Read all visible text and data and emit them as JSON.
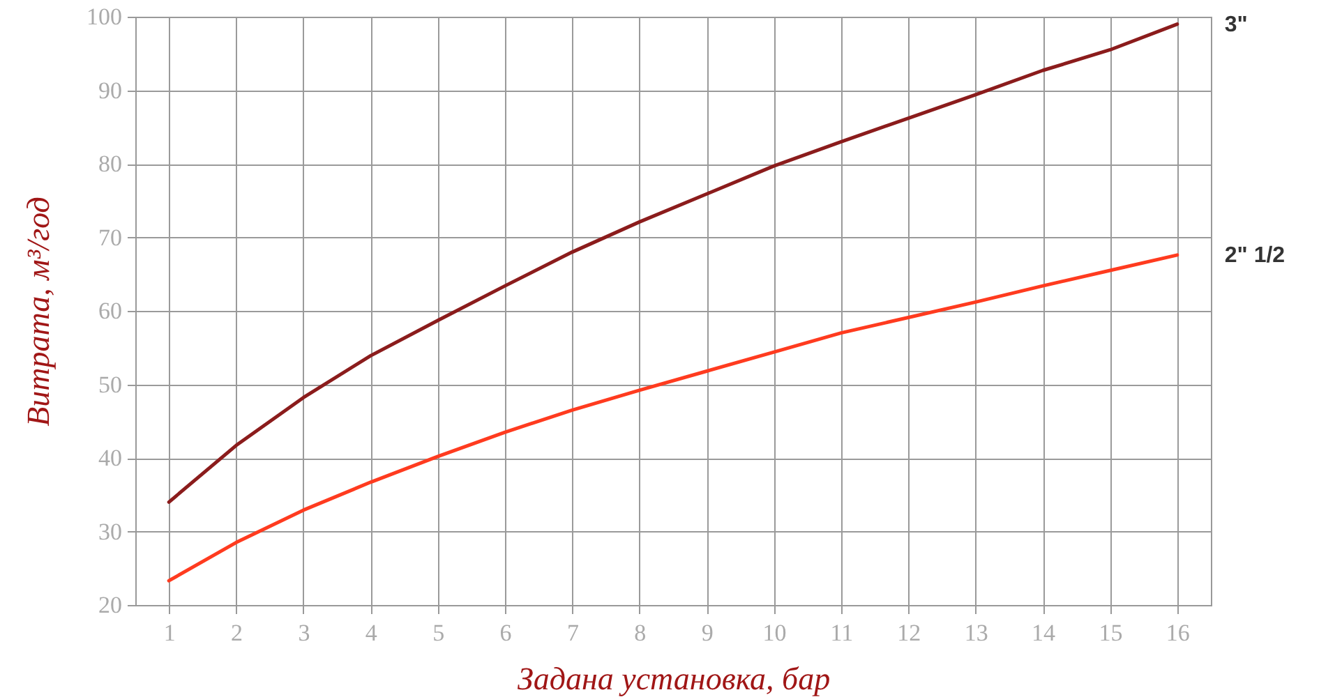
{
  "chart_data": {
    "type": "line",
    "xlabel": "Задана установка, бар",
    "ylabel": "Витрата, м³/год",
    "x": [
      1,
      2,
      3,
      4,
      5,
      6,
      7,
      8,
      9,
      10,
      11,
      12,
      13,
      14,
      15,
      16
    ],
    "series": [
      {
        "name": "3\"",
        "color": "#8b1c1c",
        "values": [
          34.0,
          41.7,
          48.2,
          53.9,
          58.7,
          63.4,
          68.0,
          72.1,
          75.9,
          79.7,
          83.0,
          86.2,
          89.4,
          92.7,
          95.5,
          99.0
        ]
      },
      {
        "name": "2\" 1/2",
        "color": "#ff3b1f",
        "values": [
          23.3,
          28.5,
          32.9,
          36.7,
          40.2,
          43.5,
          46.5,
          49.2,
          51.8,
          54.4,
          57.0,
          59.1,
          61.2,
          63.4,
          65.5,
          67.6
        ]
      }
    ],
    "xlim": [
      0.5,
      16.5
    ],
    "ylim": [
      20,
      100
    ],
    "xticks": [
      1,
      2,
      3,
      4,
      5,
      6,
      7,
      8,
      9,
      10,
      11,
      12,
      13,
      14,
      15,
      16
    ],
    "yticks": [
      20,
      30,
      40,
      50,
      60,
      70,
      80,
      90,
      100
    ],
    "grid": true,
    "marker": "none",
    "line_style": "solid"
  }
}
